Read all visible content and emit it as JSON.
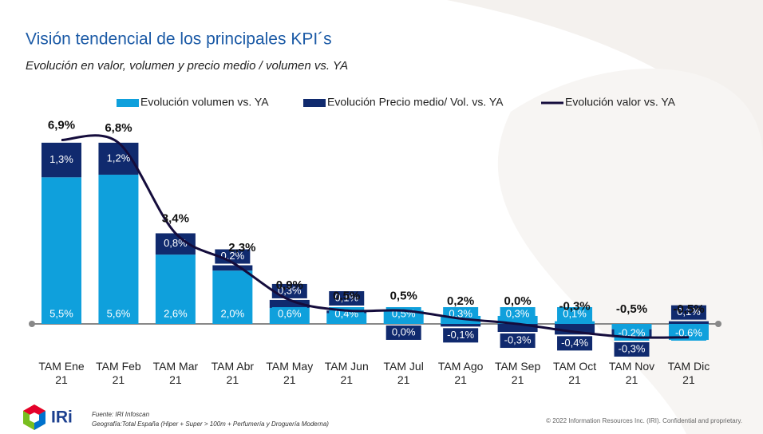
{
  "chart_data": {
    "type": "bar",
    "title": "Visión tendencial de los principales KPI´s",
    "subtitle": "Evolución en valor, volumen y precio medio / volumen vs. YA",
    "categories": [
      "TAM Ene 21",
      "TAM Feb 21",
      "TAM Mar 21",
      "TAM Abr 21",
      "TAM May 21",
      "TAM Jun 21",
      "TAM Jul 21",
      "TAM Ago 21",
      "TAM Sep 21",
      "TAM Oct 21",
      "TAM Nov 21",
      "TAM Dic 21"
    ],
    "series": [
      {
        "name": "Evolución volumen vs. YA",
        "color": "#0fa0dc",
        "values": [
          5.5,
          5.6,
          2.6,
          2.0,
          0.6,
          0.4,
          0.5,
          0.3,
          0.3,
          0.1,
          -0.2,
          -0.6
        ],
        "value_labels": [
          "5,5%",
          "5,6%",
          "2,6%",
          "2,0%",
          "0,6%",
          "0,4%",
          "0,5%",
          "0,3%",
          "0,3%",
          "0,1%",
          "-0,2%",
          "-0,6%"
        ]
      },
      {
        "name": "Evolución Precio medio/ Vol. vs. YA",
        "color": "#102a6e",
        "values": [
          1.3,
          1.2,
          0.8,
          0.2,
          0.3,
          0.1,
          0.0,
          -0.1,
          -0.3,
          -0.4,
          -0.3,
          0.1
        ],
        "value_labels": [
          "1,3%",
          "1,2%",
          "0,8%",
          "0,2%",
          "0,3%",
          "0,1%",
          "0,0%",
          "-0,1%",
          "-0,3%",
          "-0,4%",
          "-0,3%",
          "0,1%"
        ]
      },
      {
        "name": "Evolución valor vs. YA",
        "color": "#140c3c",
        "type": "line",
        "values": [
          6.9,
          6.8,
          3.4,
          2.3,
          0.9,
          0.5,
          0.5,
          0.2,
          0.0,
          -0.3,
          -0.5,
          -0.5
        ],
        "value_labels": [
          "6,9%",
          "6,8%",
          "3,4%",
          "2,3%",
          "0,9%",
          "0,5%",
          "0,5%",
          "0,2%",
          "0,0%",
          "-0,3%",
          "-0,5%",
          "-0,5%"
        ]
      }
    ]
  },
  "footer": {
    "logo_text": "IRi",
    "source": "Fuente: IRI Infoscan",
    "geography": "Geografía:Total España (Hiper + Super > 100m + Perfumería y Droguería Moderna)",
    "copyright": "© 2022 Information Resources Inc. (IRI). Confidential and proprietary."
  }
}
